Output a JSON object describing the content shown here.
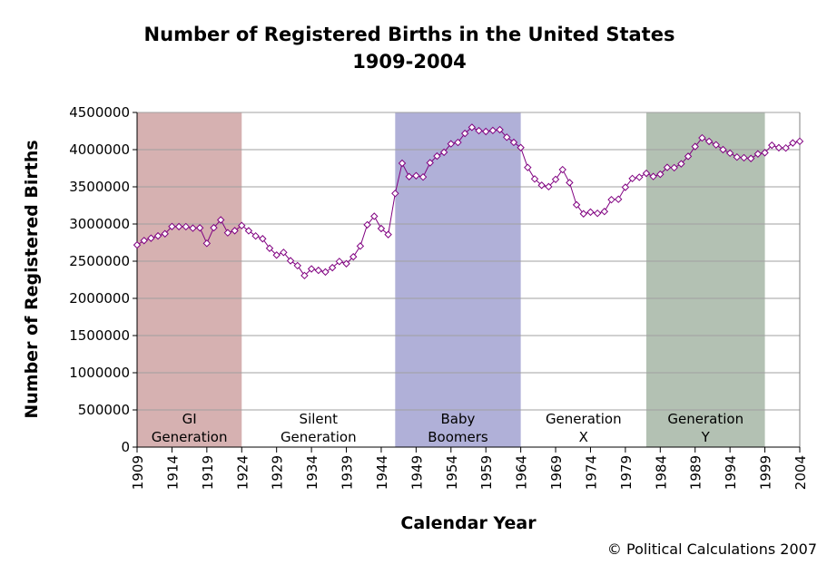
{
  "chart_data": {
    "type": "line",
    "title": "Number of Registered Births in the United States",
    "subtitle": "1909-2004",
    "xlabel": "Calendar Year",
    "ylabel": "Number of Registered Births",
    "xlim": [
      1909,
      2004
    ],
    "ylim": [
      0,
      4500000
    ],
    "grid": true,
    "x_ticks": [
      "1909",
      "1914",
      "1919",
      "1924",
      "1929",
      "1934",
      "1939",
      "1944",
      "1949",
      "1954",
      "1959",
      "1964",
      "1969",
      "1974",
      "1979",
      "1984",
      "1989",
      "1994",
      "1999",
      "2004"
    ],
    "y_ticks": [
      "0",
      "500000",
      "1000000",
      "1500000",
      "2000000",
      "2500000",
      "3000000",
      "3500000",
      "4000000",
      "4500000"
    ],
    "line_color": "#800080",
    "marker": "diamond",
    "x": [
      1909,
      1910,
      1911,
      1912,
      1913,
      1914,
      1915,
      1916,
      1917,
      1918,
      1919,
      1920,
      1921,
      1922,
      1923,
      1924,
      1925,
      1926,
      1927,
      1928,
      1929,
      1930,
      1931,
      1932,
      1933,
      1934,
      1935,
      1936,
      1937,
      1938,
      1939,
      1940,
      1941,
      1942,
      1943,
      1944,
      1945,
      1946,
      1947,
      1948,
      1949,
      1950,
      1951,
      1952,
      1953,
      1954,
      1955,
      1956,
      1957,
      1958,
      1959,
      1960,
      1961,
      1962,
      1963,
      1964,
      1965,
      1966,
      1967,
      1968,
      1969,
      1970,
      1971,
      1972,
      1973,
      1974,
      1975,
      1976,
      1977,
      1978,
      1979,
      1980,
      1981,
      1982,
      1983,
      1984,
      1985,
      1986,
      1987,
      1988,
      1989,
      1990,
      1991,
      1992,
      1993,
      1994,
      1995,
      1996,
      1997,
      1998,
      1999,
      2000,
      2001,
      2002,
      2003,
      2004
    ],
    "values": [
      2718000,
      2777000,
      2809000,
      2840000,
      2869000,
      2966000,
      2965000,
      2964000,
      2944000,
      2948000,
      2740000,
      2950000,
      3055000,
      2882000,
      2910000,
      2979000,
      2909000,
      2839000,
      2802000,
      2674000,
      2582000,
      2618000,
      2506000,
      2440000,
      2307000,
      2396000,
      2377000,
      2355000,
      2413000,
      2496000,
      2466000,
      2559000,
      2703000,
      2989000,
      3104000,
      2939000,
      2858000,
      3411000,
      3817000,
      3637000,
      3649000,
      3632000,
      3823000,
      3913000,
      3965000,
      4078000,
      4097000,
      4218000,
      4300000,
      4255000,
      4244000,
      4258000,
      4268000,
      4167000,
      4098000,
      4027000,
      3760000,
      3606000,
      3521000,
      3502000,
      3600000,
      3731000,
      3556000,
      3258000,
      3137000,
      3160000,
      3144000,
      3168000,
      3327000,
      3333000,
      3494000,
      3612000,
      3629000,
      3681000,
      3639000,
      3669000,
      3761000,
      3757000,
      3809000,
      3910000,
      4041000,
      4158000,
      4111000,
      4065000,
      4000000,
      3953000,
      3900000,
      3891000,
      3881000,
      3942000,
      3959000,
      4059000,
      4026000,
      4022000,
      4090000,
      4112000
    ],
    "bands": [
      {
        "label_lines": [
          "GI",
          "Generation"
        ],
        "start": 1909,
        "end": 1924,
        "color": "#d6b1b1"
      },
      {
        "label_lines": [
          "Silent",
          "Generation"
        ],
        "start": 1924,
        "end": 1946,
        "color": ""
      },
      {
        "label_lines": [
          "Baby",
          "Boomers"
        ],
        "start": 1946,
        "end": 1964,
        "color": "#b0b0d8"
      },
      {
        "label_lines": [
          "Generation",
          "X"
        ],
        "start": 1964,
        "end": 1982,
        "color": ""
      },
      {
        "label_lines": [
          "Generation",
          "Y"
        ],
        "start": 1982,
        "end": 1999,
        "color": "#b3c1b3"
      }
    ]
  },
  "credit": "© Political Calculations 2007"
}
